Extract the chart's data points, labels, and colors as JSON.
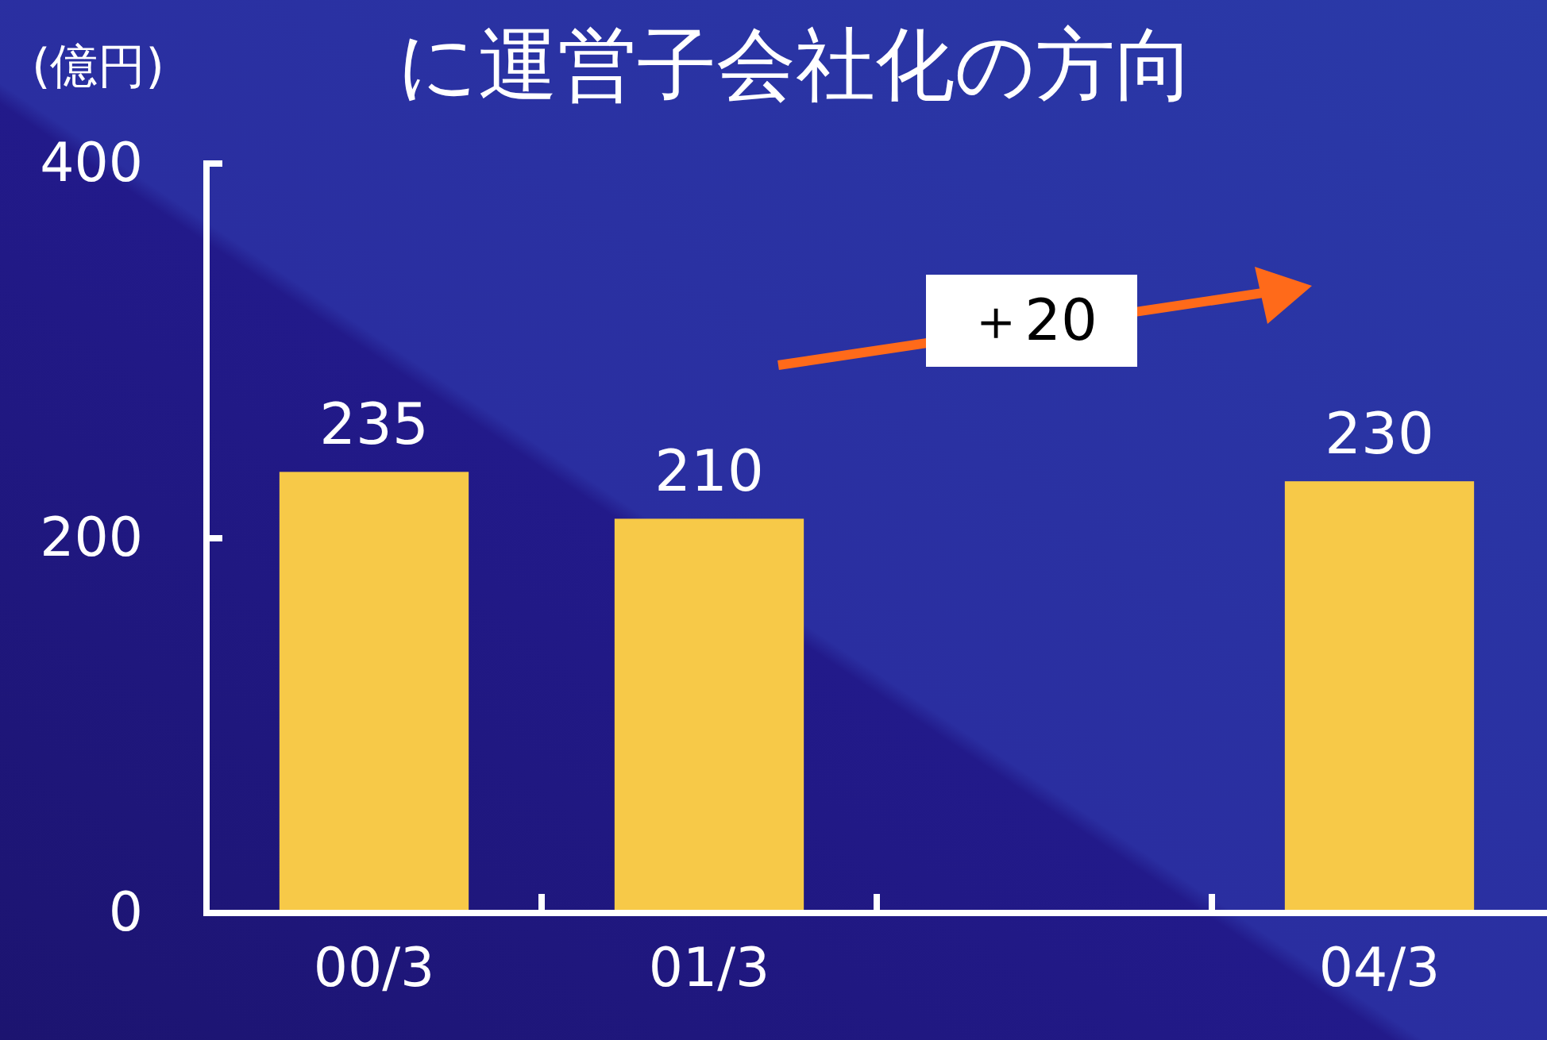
{
  "chart_data": {
    "type": "bar",
    "title": "に運営子会社化の方向",
    "ylabel": "(億円)",
    "categories": [
      "00/3",
      "01/3",
      null,
      "04/3"
    ],
    "values": [
      235,
      210,
      null,
      230
    ],
    "color": "#f7c948",
    "ylim": [
      0,
      400
    ],
    "yticks": [
      0,
      200,
      400
    ],
    "data_labels": true,
    "grid": false,
    "annotations": [
      "＋20"
    ]
  }
}
